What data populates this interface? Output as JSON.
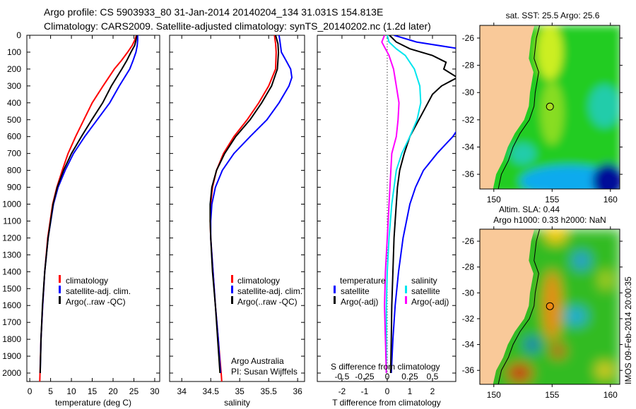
{
  "title": {
    "line1": "Argo profile: CS 5903933_80 31-Jan-2014 20140204_134 31.031S 154.813E",
    "line2": "Climatology: CARS2009. Satellite-adjusted climatology: synTS_20140202.nc (1.2d later)"
  },
  "colors": {
    "climatology": "#ff0000",
    "satellite": "#0000ff",
    "argo": "#000000",
    "sal_satellite": "#00e5ee",
    "sal_argo": "#ff00ff",
    "land": "#f9c999"
  },
  "credit": "IMOS 09-Feb-2014 20:00:35",
  "depth_axis": {
    "ylim": [
      0,
      2050
    ],
    "ticks": [
      0,
      100,
      200,
      300,
      400,
      500,
      600,
      700,
      800,
      900,
      1000,
      1100,
      1200,
      1300,
      1400,
      1500,
      1600,
      1700,
      1800,
      1900,
      2000
    ],
    "tick_labels": [
      "0",
      "100",
      "200",
      "300",
      "400",
      "500",
      "600",
      "700",
      "800",
      "900",
      "1000",
      "1100",
      "1200",
      "1300",
      "1400",
      "1500",
      "1600",
      "1700",
      "1800",
      "1900",
      "2000"
    ]
  },
  "chart_data": [
    {
      "type": "line",
      "name": "temperature",
      "xlabel": "temperature (deg C)",
      "xlim": [
        -0.7,
        31.2
      ],
      "xticks": [
        0,
        5,
        10,
        15,
        20,
        25,
        30
      ],
      "xtick_labels": [
        "0",
        "5",
        "10",
        "15",
        "20",
        "25",
        "30"
      ],
      "legend": [
        "climatology",
        "satellite-adj. clim.",
        "Argo(..raw -QC)"
      ],
      "series": [
        {
          "name": "climatology",
          "color": "#ff0000",
          "depth": [
            0,
            30,
            60,
            100,
            150,
            200,
            300,
            400,
            500,
            600,
            700,
            800,
            900,
            1000,
            1200,
            1400,
            1600,
            1800,
            2000,
            2050
          ],
          "values": [
            25.6,
            25.2,
            24.6,
            23.5,
            22,
            20.3,
            17.6,
            15,
            13,
            11,
            9.2,
            7.8,
            6.5,
            5.5,
            4.3,
            3.6,
            3.1,
            2.7,
            2.45,
            2.4
          ]
        },
        {
          "name": "satellite-adj. clim.",
          "color": "#0000ff",
          "depth": [
            0,
            30,
            60,
            100,
            150,
            200,
            300,
            400,
            500,
            600,
            700,
            800,
            900,
            1000,
            1200,
            1400,
            1600,
            1800,
            2000
          ],
          "values": [
            25.9,
            25.9,
            25.8,
            25.5,
            24.8,
            24,
            21.5,
            19.2,
            16.2,
            13.2,
            10.5,
            8.5,
            6.8,
            5.7,
            4.4,
            3.6,
            3.1,
            2.7,
            2.5
          ]
        },
        {
          "name": "Argo(..raw -QC)",
          "color": "#000000",
          "depth": [
            0,
            30,
            60,
            100,
            150,
            200,
            300,
            400,
            500,
            600,
            700,
            800,
            900,
            1000,
            1200,
            1400,
            1600,
            1800,
            2000
          ],
          "values": [
            25.7,
            25.5,
            25.2,
            24.3,
            23.3,
            22.1,
            19.6,
            17.5,
            14.9,
            12.4,
            10,
            8.1,
            6.6,
            5.6,
            4.4,
            3.6,
            3.05,
            2.7,
            2.5
          ]
        }
      ]
    },
    {
      "type": "line",
      "name": "salinity",
      "xlabel": "salinity",
      "xlim": [
        33.79,
        36.12
      ],
      "xticks": [
        34,
        34.5,
        35,
        35.5,
        36
      ],
      "xtick_labels": [
        "34",
        "34.5",
        "35",
        "35.5",
        "36"
      ],
      "legend": [
        "climatology",
        "satellite-adj. clim.",
        "Argo(..raw -QC)"
      ],
      "annotation": [
        "Argo Australia",
        "PI: Susan Wijffels"
      ],
      "series": [
        {
          "name": "climatology",
          "color": "#ff0000",
          "depth": [
            0,
            50,
            100,
            200,
            300,
            400,
            500,
            600,
            700,
            800,
            900,
            1000,
            1100,
            1200,
            1400,
            1600,
            1800,
            2000,
            2050
          ],
          "values": [
            35.6,
            35.62,
            35.63,
            35.62,
            35.5,
            35.33,
            35.13,
            34.9,
            34.72,
            34.6,
            34.53,
            34.5,
            34.49,
            34.5,
            34.54,
            34.58,
            34.63,
            34.68,
            34.69
          ]
        },
        {
          "name": "satellite-adj. clim.",
          "color": "#0000ff",
          "depth": [
            0,
            50,
            100,
            150,
            200,
            250,
            300,
            400,
            500,
            600,
            700,
            800,
            900,
            1000,
            1100,
            1200,
            1400,
            1600,
            1800,
            2000
          ],
          "values": [
            35.68,
            35.7,
            35.72,
            35.8,
            35.88,
            35.9,
            35.85,
            35.68,
            35.47,
            35.18,
            34.9,
            34.7,
            34.58,
            34.52,
            34.5,
            34.5,
            34.54,
            34.58,
            34.63,
            34.67
          ]
        },
        {
          "name": "Argo(..raw -QC)",
          "color": "#000000",
          "depth": [
            0,
            50,
            100,
            200,
            300,
            400,
            500,
            600,
            700,
            800,
            900,
            1000,
            1100,
            1200,
            1400,
            1600,
            1800,
            2000
          ],
          "values": [
            35.62,
            35.66,
            35.67,
            35.65,
            35.55,
            35.38,
            35.18,
            34.93,
            34.74,
            34.6,
            34.52,
            34.49,
            34.49,
            34.5,
            34.53,
            34.58,
            34.62,
            34.66
          ]
        }
      ]
    },
    {
      "type": "line",
      "name": "differences",
      "xlabel": "T difference from climatology",
      "xlim": [
        -3.09,
        3.03
      ],
      "xticks": [
        -2,
        -1,
        0,
        1,
        2
      ],
      "xtick_labels": [
        "-2",
        "-1",
        "0",
        "1",
        "2"
      ],
      "secondary_xlabel": "S difference from climatology",
      "secondary_xticks": [
        -0.5,
        -0.25,
        0,
        0.25,
        0.5
      ],
      "secondary_xtick_labels": [
        "-0.5",
        "-0.25",
        "0",
        "0.25",
        "0.5"
      ],
      "secondary_scale": 0.25,
      "legend_headers": [
        "temperature",
        "salinity"
      ],
      "legend": [
        "satellite",
        "Argo(-adj)",
        "satellite",
        "Argo(-adj)"
      ],
      "series": [
        {
          "name": "temperature satellite",
          "color": "#0000ff",
          "axis": "T",
          "depth": [
            0,
            40,
            80,
            120,
            200,
            300,
            400,
            500,
            600,
            700,
            800,
            900,
            1000,
            1200,
            1400,
            1600,
            1800,
            2000
          ],
          "values": [
            0.3,
            1.3,
            3.2,
            3.5,
            3.6,
            3.6,
            3.7,
            3.4,
            2.9,
            2.2,
            1.6,
            1.25,
            1.0,
            0.7,
            0.5,
            0.35,
            0.25,
            0.18
          ]
        },
        {
          "name": "temperature Argo(-adj)",
          "color": "#000000",
          "axis": "T",
          "depth": [
            0,
            40,
            80,
            120,
            160,
            200,
            250,
            300,
            350,
            400,
            500,
            600,
            700,
            800,
            900,
            1000,
            1200,
            1400,
            1600,
            1800,
            2000
          ],
          "values": [
            0.1,
            0.4,
            1.0,
            2.0,
            2.6,
            2.5,
            3.1,
            2.4,
            2.0,
            1.8,
            1.4,
            1.0,
            0.75,
            0.55,
            0.45,
            0.4,
            0.3,
            0.25,
            0.2,
            0.18,
            0.15
          ]
        },
        {
          "name": "salinity satellite",
          "color": "#00e5ee",
          "axis": "S",
          "depth": [
            0,
            40,
            80,
            120,
            200,
            300,
            400,
            500,
            600,
            700,
            800,
            1000,
            1200,
            1400,
            1600,
            1800,
            2000
          ],
          "values": [
            0,
            0.02,
            0.1,
            0.2,
            0.3,
            0.36,
            0.37,
            0.33,
            0.25,
            0.16,
            0.1,
            0.05,
            0.02,
            0.0,
            -0.01,
            -0.01,
            -0.01
          ]
        },
        {
          "name": "salinity Argo(-adj)",
          "color": "#ff00ff",
          "axis": "S",
          "depth": [
            0,
            40,
            80,
            120,
            200,
            300,
            400,
            500,
            600,
            700,
            800,
            900,
            1000,
            1200,
            1400,
            1600,
            1800,
            2000
          ],
          "values": [
            -0.03,
            -0.06,
            -0.02,
            0.02,
            0.07,
            0.1,
            0.13,
            0.12,
            0.1,
            0.05,
            0.04,
            0.03,
            0.02,
            0.0,
            -0.02,
            -0.03,
            -0.02,
            -0.01
          ]
        }
      ]
    }
  ],
  "maps": [
    {
      "name": "sst",
      "title": "sat. SST: 25.5 Argo: 25.6",
      "xticks": [
        150,
        155,
        160
      ],
      "yticks": [
        -26,
        -28,
        -30,
        -32,
        -34,
        -36
      ],
      "float_lon": 154.813,
      "float_lat": -31.031
    },
    {
      "name": "sla",
      "title1": "Altim. SLA: 0.44",
      "title2": "Argo h1000: 0.33 h2000: NaN",
      "xticks": [
        150,
        155,
        160
      ],
      "yticks": [
        -26,
        -28,
        -30,
        -32,
        -34,
        -36
      ],
      "float_lon": 154.813,
      "float_lat": -31.031
    }
  ]
}
